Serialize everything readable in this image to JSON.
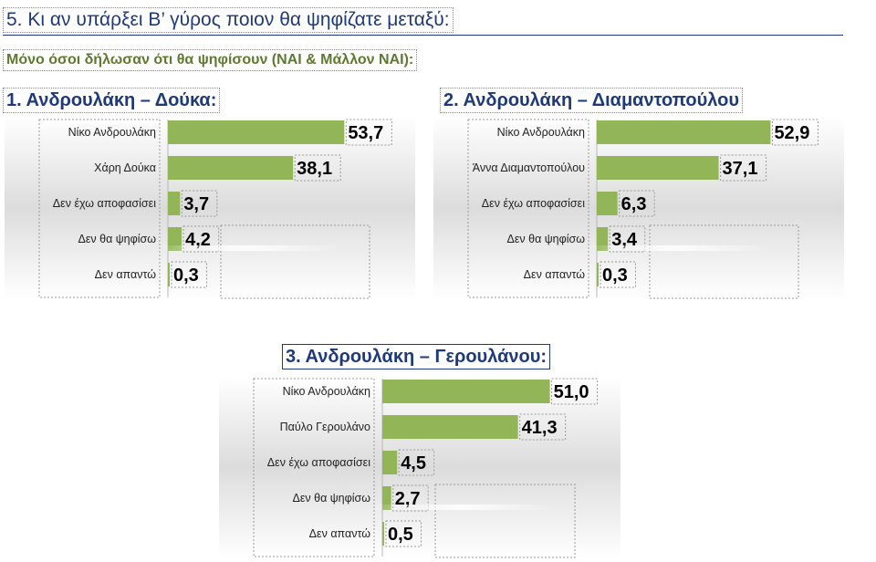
{
  "page": {
    "title": "5. Κι αν υπάρξει Β’ γύρος ποιον θα ψηφίζατε μεταξύ:",
    "subtitle": "Μόνο όσοι δήλωσαν ότι θα ψηφίσουν (ΝΑΙ & Μάλλον ΝΑΙ):"
  },
  "colors": {
    "bar": "#92b558",
    "title": "#1f3a7a",
    "subtitle": "#5e7a2e"
  },
  "chart_data": [
    {
      "type": "bar",
      "orientation": "horizontal",
      "title": "1. Ανδρουλάκη – Δούκα:",
      "categories": [
        "Νίκο Ανδρουλάκη",
        "Χάρη Δούκα",
        "Δεν έχω αποφασίσει",
        "Δεν θα ψηφίσω",
        "Δεν απαντώ"
      ],
      "values": [
        53.7,
        38.1,
        3.7,
        4.2,
        0.3
      ],
      "value_labels": [
        "53,7",
        "38,1",
        "3,7",
        "4,2",
        "0,3"
      ],
      "xlim": [
        0,
        60
      ],
      "grid": false
    },
    {
      "type": "bar",
      "orientation": "horizontal",
      "title": "2. Ανδρουλάκη – Διαμαντοπούλου",
      "categories": [
        "Νίκο Ανδρουλάκη",
        "Άννα Διαμαντοπούλου",
        "Δεν έχω αποφασίσει",
        "Δεν θα ψηφίσω",
        "Δεν απαντώ"
      ],
      "values": [
        52.9,
        37.1,
        6.3,
        3.4,
        0.3
      ],
      "value_labels": [
        "52,9",
        "37,1",
        "6,3",
        "3,4",
        "0,3"
      ],
      "xlim": [
        0,
        60
      ],
      "grid": false
    },
    {
      "type": "bar",
      "orientation": "horizontal",
      "title": "3. Ανδρουλάκη – Γερουλάνου:",
      "categories": [
        "Νίκο Ανδρουλάκη",
        "Παύλο Γερουλάνο",
        "Δεν έχω αποφασίσει",
        "Δεν θα ψηφίσω",
        "Δεν απαντώ"
      ],
      "values": [
        51.0,
        41.3,
        4.5,
        2.7,
        0.5
      ],
      "value_labels": [
        "51,0",
        "41,3",
        "4,5",
        "2,7",
        "0,5"
      ],
      "xlim": [
        0,
        60
      ],
      "grid": false
    }
  ]
}
